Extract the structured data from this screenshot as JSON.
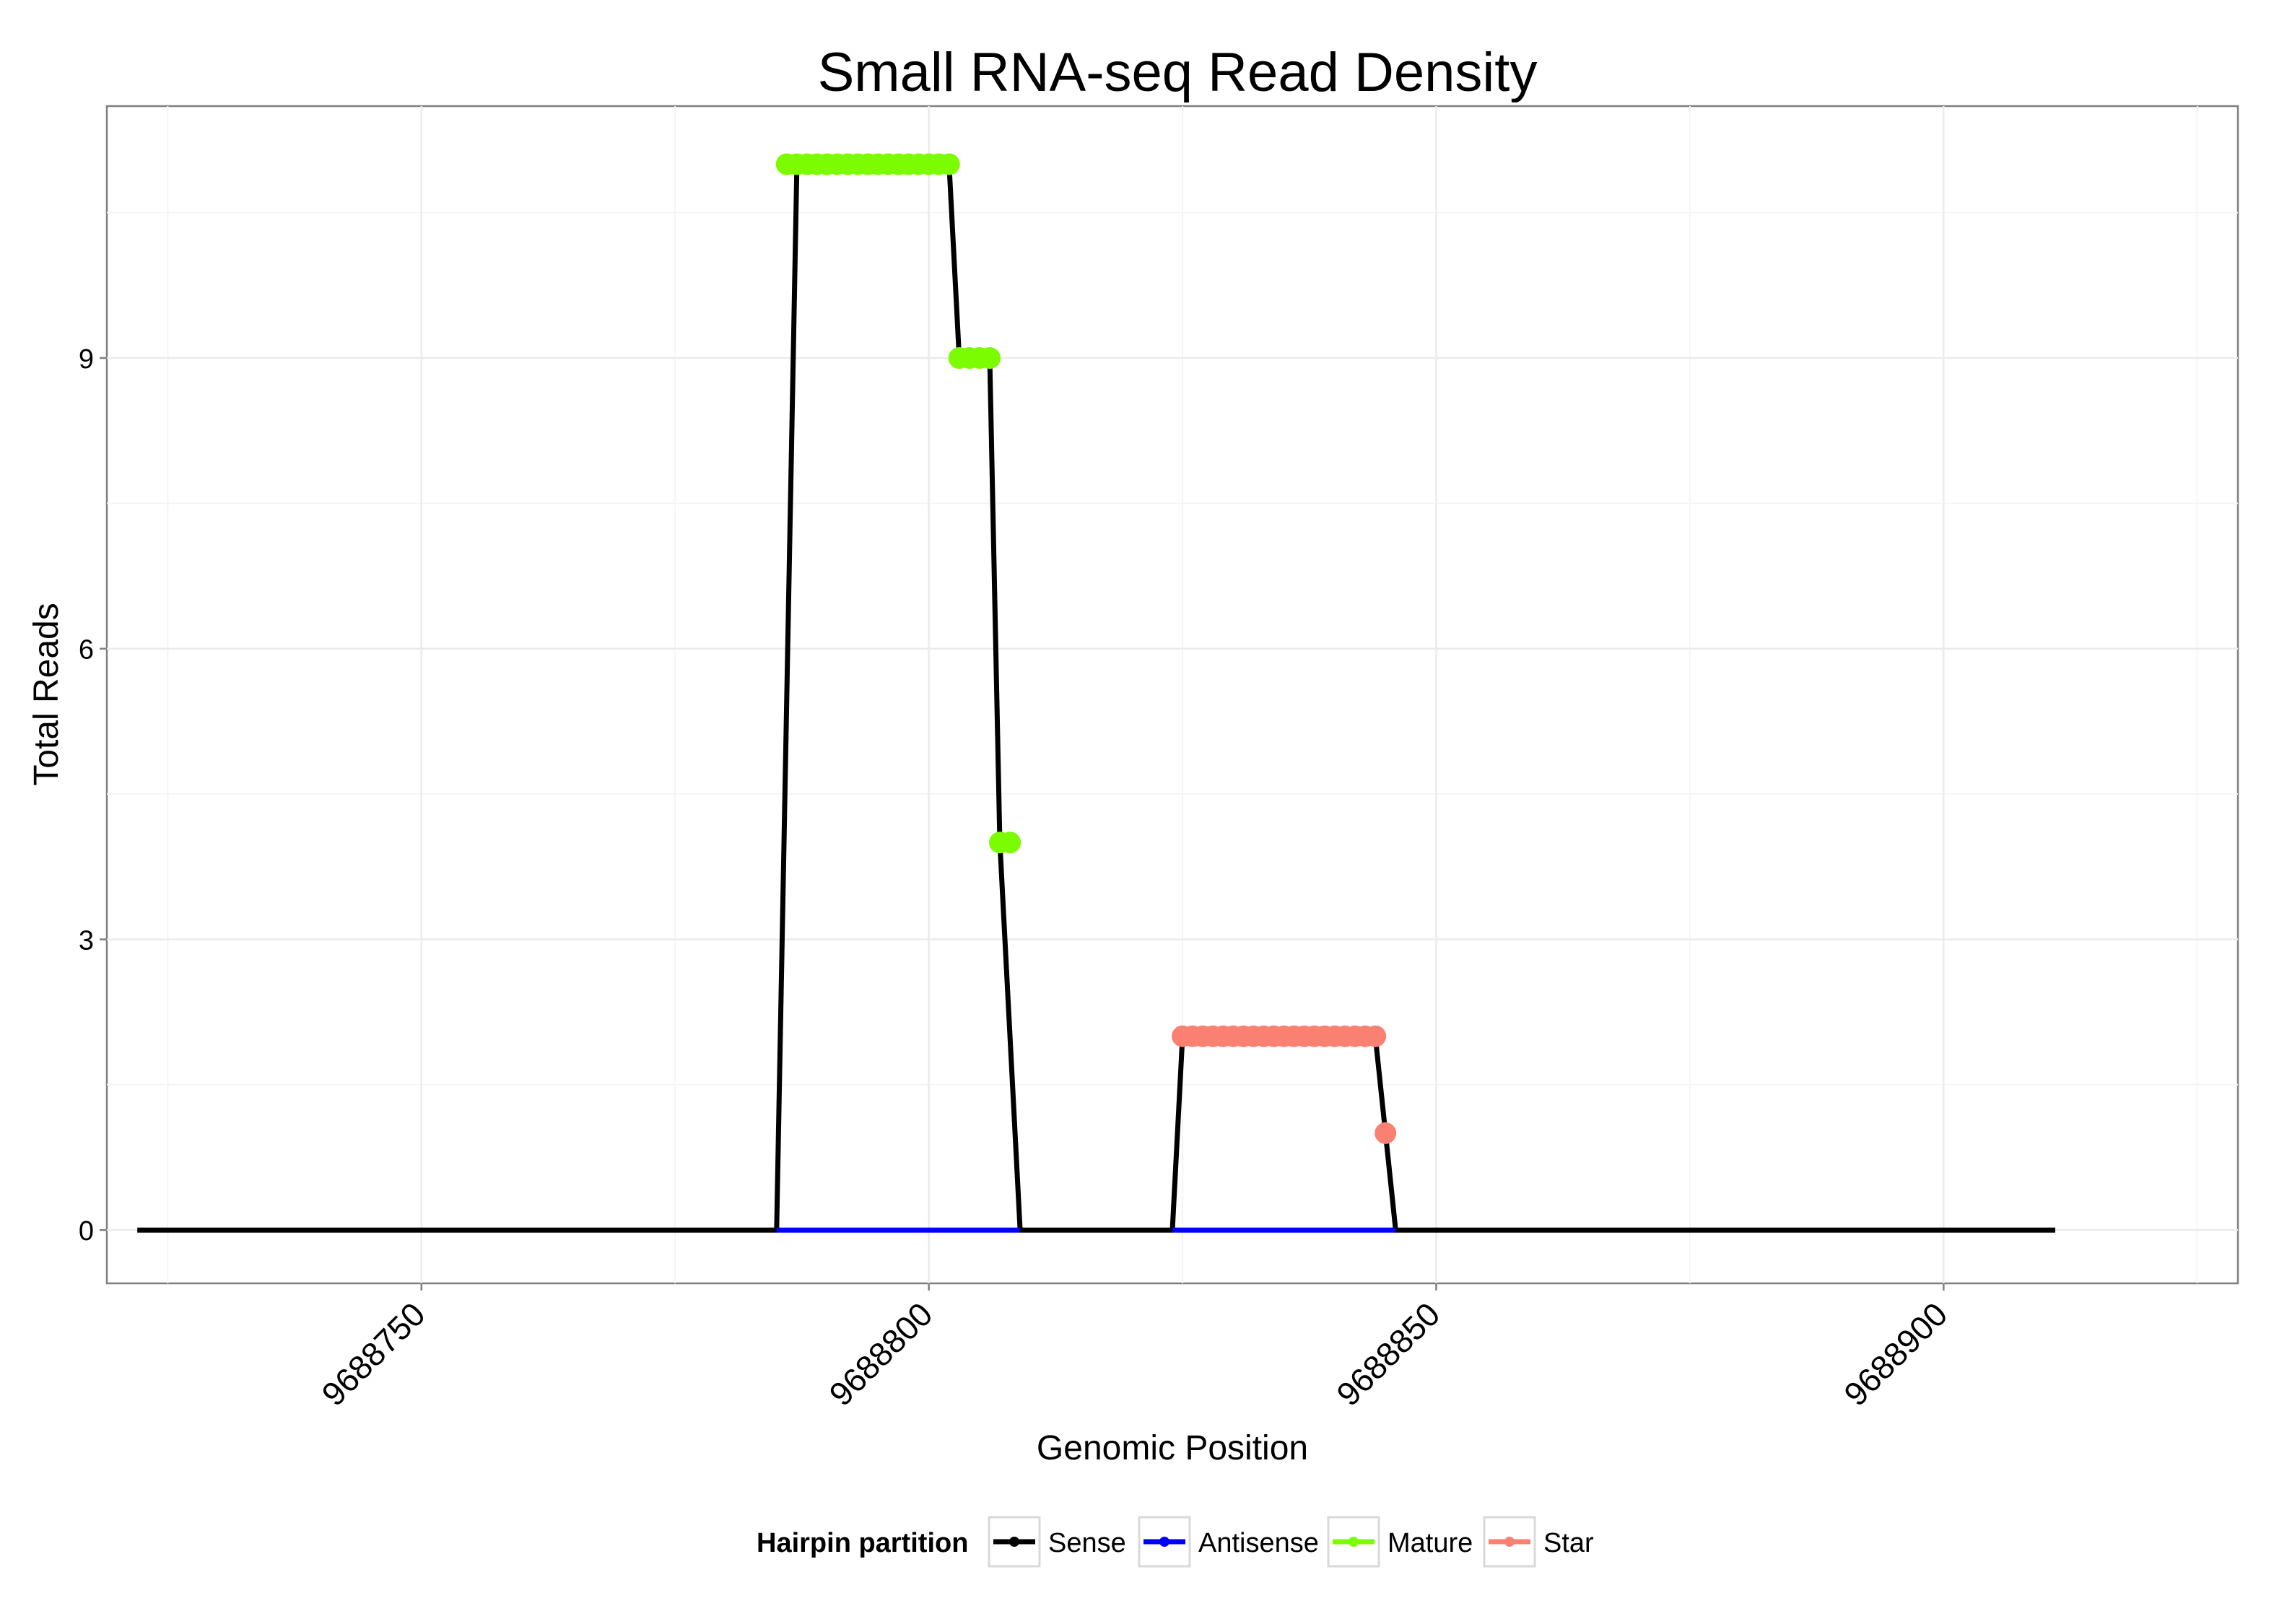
{
  "chart_data": {
    "type": "line",
    "title": "Small RNA-seq Read Density",
    "xlabel": "Genomic Position",
    "ylabel": "Total Reads",
    "xlim": [
      9688719,
      9688929
    ],
    "ylim": [
      -0.55,
      11.6
    ],
    "x_ticks": [
      9688750,
      9688800,
      9688850,
      9688900
    ],
    "x_tick_labels": [
      "9688750",
      "9688800",
      "9688850",
      "9688900"
    ],
    "y_ticks": [
      0,
      3,
      6,
      9
    ],
    "y_tick_labels": [
      "0",
      "3",
      "6",
      "9"
    ],
    "grid": true,
    "legend": {
      "title": "Hairpin partition",
      "position": "bottom",
      "entries": [
        {
          "label": "Sense",
          "color": "#000000"
        },
        {
          "label": "Antisense",
          "color": "#0000ff"
        },
        {
          "label": "Mature",
          "color": "#7cfc00"
        },
        {
          "label": "Star",
          "color": "#fa8072"
        }
      ]
    },
    "series": [
      {
        "name": "Sense",
        "color": "#000000",
        "kind": "line",
        "points": [
          [
            9688722,
            0
          ],
          [
            9688785,
            0
          ],
          [
            9688787,
            11
          ],
          [
            9688802,
            11
          ],
          [
            9688803,
            9
          ],
          [
            9688806,
            9
          ],
          [
            9688807,
            4
          ],
          [
            9688809,
            0
          ],
          [
            9688824,
            0
          ],
          [
            9688825,
            2
          ],
          [
            9688844,
            2
          ],
          [
            9688845,
            1
          ],
          [
            9688846,
            0
          ],
          [
            9688911,
            0
          ]
        ]
      },
      {
        "name": "Antisense",
        "color": "#0000ff",
        "kind": "line",
        "segments": [
          [
            [
              9688785,
              0
            ],
            [
              9688809,
              0
            ]
          ],
          [
            [
              9688824,
              0
            ],
            [
              9688846,
              0
            ]
          ]
        ]
      },
      {
        "name": "Mature",
        "color": "#7cfc00",
        "kind": "points",
        "points": [
          [
            9688786,
            11
          ],
          [
            9688787,
            11
          ],
          [
            9688788,
            11
          ],
          [
            9688789,
            11
          ],
          [
            9688790,
            11
          ],
          [
            9688791,
            11
          ],
          [
            9688792,
            11
          ],
          [
            9688793,
            11
          ],
          [
            9688794,
            11
          ],
          [
            9688795,
            11
          ],
          [
            9688796,
            11
          ],
          [
            9688797,
            11
          ],
          [
            9688798,
            11
          ],
          [
            9688799,
            11
          ],
          [
            9688800,
            11
          ],
          [
            9688801,
            11
          ],
          [
            9688802,
            11
          ],
          [
            9688803,
            9
          ],
          [
            9688804,
            9
          ],
          [
            9688805,
            9
          ],
          [
            9688806,
            9
          ],
          [
            9688807,
            4
          ],
          [
            9688808,
            4
          ]
        ]
      },
      {
        "name": "Star",
        "color": "#fa8072",
        "kind": "points",
        "points": [
          [
            9688825,
            2
          ],
          [
            9688826,
            2
          ],
          [
            9688827,
            2
          ],
          [
            9688828,
            2
          ],
          [
            9688829,
            2
          ],
          [
            9688830,
            2
          ],
          [
            9688831,
            2
          ],
          [
            9688832,
            2
          ],
          [
            9688833,
            2
          ],
          [
            9688834,
            2
          ],
          [
            9688835,
            2
          ],
          [
            9688836,
            2
          ],
          [
            9688837,
            2
          ],
          [
            9688838,
            2
          ],
          [
            9688839,
            2
          ],
          [
            9688840,
            2
          ],
          [
            9688841,
            2
          ],
          [
            9688842,
            2
          ],
          [
            9688843,
            2
          ],
          [
            9688844,
            2
          ],
          [
            9688845,
            1
          ]
        ]
      }
    ]
  }
}
